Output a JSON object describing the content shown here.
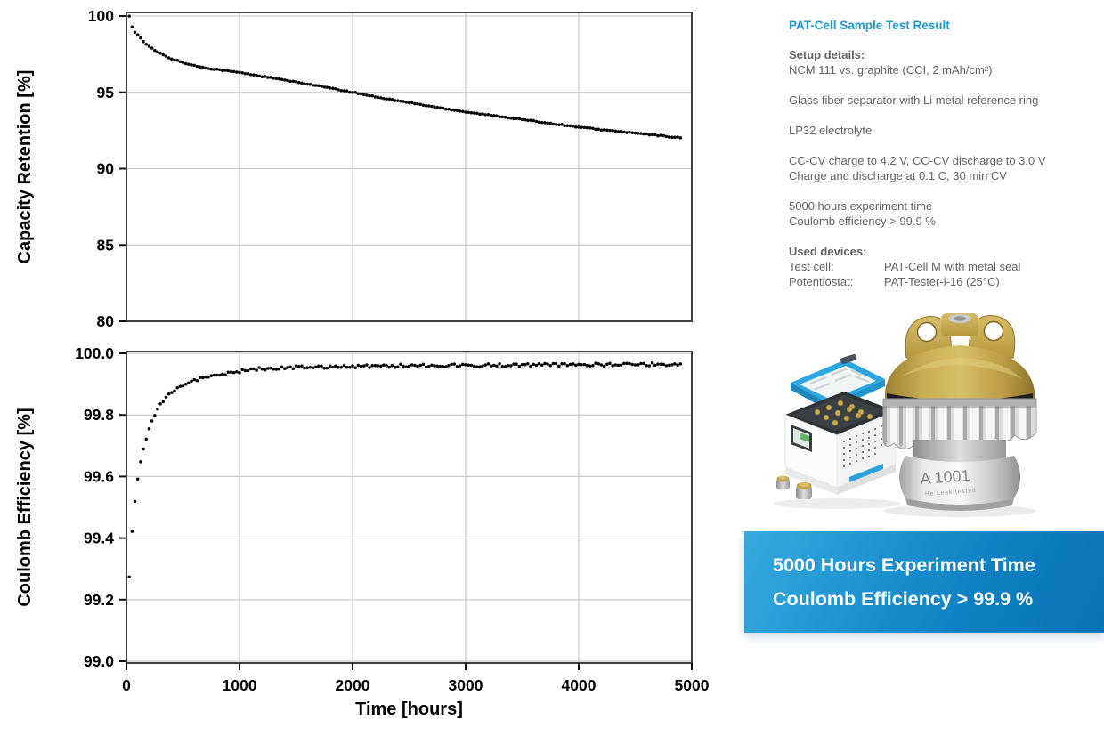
{
  "accent_blue": "#1b9bd7",
  "text_gray": "#626366",
  "info_panel": {
    "title": "PAT-Cell Sample Test Result",
    "setup_heading": "Setup details:",
    "setup_paragraphs": [
      [
        "NCM 111 vs. graphite (CCI, 2 mAh/cm²)"
      ],
      [
        "Glass fiber separator with Li metal reference ring"
      ],
      [
        "LP32 electrolyte"
      ],
      [
        "CC-CV charge to 4.2 V, CC-CV discharge to 3.0 V",
        "Charge and discharge at 0.1 C, 30 min CV"
      ],
      [
        "5000 hours experiment time",
        "Coulomb efficiency > 99.9 %"
      ]
    ],
    "devices_heading": "Used devices:",
    "devices": [
      {
        "label": "Test cell:",
        "value": "PAT-Cell M with metal seal"
      },
      {
        "label": "Potentiostat:",
        "value": "PAT-Tester-i-16 (25°C)"
      }
    ]
  },
  "cell_markings": {
    "serial": "A 1001",
    "subtext": "He Leak tested"
  },
  "banner": {
    "line1": "5000 Hours Experiment Time",
    "line2": "Coulomb Efficiency > 99.9 %",
    "gradient_from": "#36aade",
    "gradient_mid": "#0e82c4",
    "gradient_to": "#0a72b5"
  },
  "chart_data": [
    {
      "type": "scatter",
      "title": "",
      "ylabel": "Capacity Retention [%]",
      "xlabel": "",
      "xlim": [
        0,
        5000
      ],
      "ylim": [
        80,
        100
      ],
      "xticks": [
        0,
        1000,
        2000,
        3000,
        4000,
        5000
      ],
      "xtick_labels": [],
      "yticks": [
        80,
        85,
        90,
        95,
        100
      ],
      "ytick_labels": [
        "80",
        "85",
        "90",
        "95",
        "100"
      ],
      "grid": true,
      "marker_color": "#000000",
      "marker_radius": 1.75,
      "sample_step_hours": 25,
      "jitter": 0.03,
      "points_t_v": [
        [
          25,
          100
        ],
        [
          40,
          99.5
        ],
        [
          55,
          99.2
        ],
        [
          75,
          98.95
        ],
        [
          100,
          98.8
        ],
        [
          130,
          98.5
        ],
        [
          160,
          98.25
        ],
        [
          200,
          98.0
        ],
        [
          250,
          97.75
        ],
        [
          300,
          97.55
        ],
        [
          350,
          97.35
        ],
        [
          400,
          97.2
        ],
        [
          500,
          96.95
        ],
        [
          600,
          96.75
        ],
        [
          700,
          96.6
        ],
        [
          800,
          96.5
        ],
        [
          900,
          96.4
        ],
        [
          1000,
          96.3
        ],
        [
          1200,
          96.05
        ],
        [
          1400,
          95.8
        ],
        [
          1600,
          95.55
        ],
        [
          1800,
          95.28
        ],
        [
          2000,
          95.0
        ],
        [
          2200,
          94.72
        ],
        [
          2400,
          94.45
        ],
        [
          2600,
          94.2
        ],
        [
          2800,
          93.95
        ],
        [
          3000,
          93.72
        ],
        [
          3200,
          93.52
        ],
        [
          3400,
          93.32
        ],
        [
          3600,
          93.12
        ],
        [
          3800,
          92.92
        ],
        [
          4000,
          92.72
        ],
        [
          4200,
          92.55
        ],
        [
          4400,
          92.4
        ],
        [
          4600,
          92.25
        ],
        [
          4800,
          92.1
        ],
        [
          4900,
          92.02
        ]
      ]
    },
    {
      "type": "scatter",
      "title": "",
      "ylabel": "Coulomb Efficiency [%]",
      "xlabel": "Time [hours]",
      "xlim": [
        0,
        5000
      ],
      "ylim": [
        99.0,
        100.0
      ],
      "xticks": [
        0,
        1000,
        2000,
        3000,
        4000,
        5000
      ],
      "xtick_labels": [
        "0",
        "1000",
        "2000",
        "3000",
        "4000",
        "5000"
      ],
      "yticks": [
        99.0,
        99.2,
        99.4,
        99.6,
        99.8,
        100.0
      ],
      "ytick_labels": [
        "99.0",
        "99.2",
        "99.4",
        "99.6",
        "99.8",
        "100.0"
      ],
      "grid": true,
      "marker_color": "#000000",
      "marker_radius": 1.75,
      "sample_step_hours": 25,
      "jitter": 0.005,
      "points_t_v": [
        [
          25,
          99.27
        ],
        [
          50,
          99.42
        ],
        [
          75,
          99.52
        ],
        [
          100,
          99.59
        ],
        [
          125,
          99.645
        ],
        [
          150,
          99.69
        ],
        [
          175,
          99.725
        ],
        [
          200,
          99.755
        ],
        [
          230,
          99.785
        ],
        [
          260,
          99.81
        ],
        [
          300,
          99.835
        ],
        [
          350,
          99.86
        ],
        [
          400,
          99.875
        ],
        [
          450,
          99.888
        ],
        [
          500,
          99.897
        ],
        [
          600,
          99.912
        ],
        [
          700,
          99.922
        ],
        [
          800,
          99.93
        ],
        [
          900,
          99.937
        ],
        [
          1000,
          99.942
        ],
        [
          1200,
          99.95
        ],
        [
          1500,
          99.955
        ],
        [
          2000,
          99.958
        ],
        [
          2500,
          99.96
        ],
        [
          3000,
          99.961
        ],
        [
          3500,
          99.962
        ],
        [
          4000,
          99.963
        ],
        [
          4500,
          99.964
        ],
        [
          4900,
          99.965
        ]
      ]
    }
  ]
}
